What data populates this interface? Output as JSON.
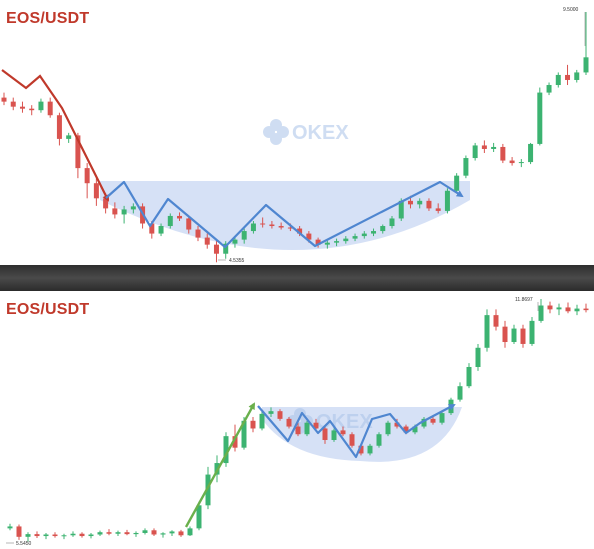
{
  "colors": {
    "up": "#3cb371",
    "down": "#d9534f",
    "pattern_fill": "#cfdcf5",
    "pattern_line": "#4f86d0",
    "downtrend_line": "#c0392b",
    "uptrend_line": "#6ab04c",
    "watermark": "#a9c3e8"
  },
  "watermark": {
    "text": "OKEX"
  },
  "chart_data": [
    {
      "type": "candlestick",
      "title": "EOS/USDT",
      "max_label": "9.5000",
      "min_label": "4.5355",
      "watermark": "OKEX",
      "annotation": "cup-shaped base after a downtrend",
      "candles": [
        {
          "o": 7.8,
          "h": 7.9,
          "l": 7.65,
          "c": 7.72
        },
        {
          "o": 7.72,
          "h": 7.8,
          "l": 7.55,
          "c": 7.62
        },
        {
          "o": 7.62,
          "h": 7.72,
          "l": 7.5,
          "c": 7.58
        },
        {
          "o": 7.58,
          "h": 7.65,
          "l": 7.45,
          "c": 7.55
        },
        {
          "o": 7.55,
          "h": 7.78,
          "l": 7.5,
          "c": 7.72
        },
        {
          "o": 7.72,
          "h": 7.8,
          "l": 7.4,
          "c": 7.45
        },
        {
          "o": 7.45,
          "h": 7.5,
          "l": 6.85,
          "c": 6.98
        },
        {
          "o": 6.98,
          "h": 7.1,
          "l": 6.9,
          "c": 7.05
        },
        {
          "o": 7.05,
          "h": 7.1,
          "l": 6.2,
          "c": 6.4
        },
        {
          "o": 6.4,
          "h": 6.5,
          "l": 5.8,
          "c": 6.1
        },
        {
          "o": 6.1,
          "h": 6.2,
          "l": 5.65,
          "c": 5.8
        },
        {
          "o": 5.8,
          "h": 5.9,
          "l": 5.5,
          "c": 5.6
        },
        {
          "o": 5.6,
          "h": 5.72,
          "l": 5.4,
          "c": 5.48
        },
        {
          "o": 5.48,
          "h": 5.65,
          "l": 5.3,
          "c": 5.58
        },
        {
          "o": 5.58,
          "h": 5.7,
          "l": 5.5,
          "c": 5.64
        },
        {
          "o": 5.64,
          "h": 5.7,
          "l": 5.2,
          "c": 5.3
        },
        {
          "o": 5.3,
          "h": 5.35,
          "l": 5.0,
          "c": 5.1
        },
        {
          "o": 5.1,
          "h": 5.3,
          "l": 5.05,
          "c": 5.25
        },
        {
          "o": 5.25,
          "h": 5.5,
          "l": 5.2,
          "c": 5.45
        },
        {
          "o": 5.45,
          "h": 5.52,
          "l": 5.35,
          "c": 5.4
        },
        {
          "o": 5.4,
          "h": 5.45,
          "l": 5.1,
          "c": 5.18
        },
        {
          "o": 5.18,
          "h": 5.25,
          "l": 4.95,
          "c": 5.02
        },
        {
          "o": 5.02,
          "h": 5.1,
          "l": 4.8,
          "c": 4.88
        },
        {
          "o": 4.88,
          "h": 4.95,
          "l": 4.53,
          "c": 4.7
        },
        {
          "o": 4.7,
          "h": 4.95,
          "l": 4.6,
          "c": 4.9
        },
        {
          "o": 4.9,
          "h": 5.05,
          "l": 4.82,
          "c": 4.98
        },
        {
          "o": 4.98,
          "h": 5.2,
          "l": 4.9,
          "c": 5.15
        },
        {
          "o": 5.15,
          "h": 5.35,
          "l": 5.1,
          "c": 5.3
        },
        {
          "o": 5.3,
          "h": 5.42,
          "l": 5.22,
          "c": 5.28
        },
        {
          "o": 5.28,
          "h": 5.35,
          "l": 5.2,
          "c": 5.25
        },
        {
          "o": 5.25,
          "h": 5.32,
          "l": 5.18,
          "c": 5.22
        },
        {
          "o": 5.22,
          "h": 5.3,
          "l": 5.15,
          "c": 5.2
        },
        {
          "o": 5.2,
          "h": 5.25,
          "l": 5.05,
          "c": 5.1
        },
        {
          "o": 5.1,
          "h": 5.15,
          "l": 4.92,
          "c": 4.98
        },
        {
          "o": 4.98,
          "h": 5.02,
          "l": 4.82,
          "c": 4.88
        },
        {
          "o": 4.88,
          "h": 4.98,
          "l": 4.8,
          "c": 4.92
        },
        {
          "o": 4.92,
          "h": 5.0,
          "l": 4.85,
          "c": 4.95
        },
        {
          "o": 4.95,
          "h": 5.05,
          "l": 4.9,
          "c": 5.0
        },
        {
          "o": 5.0,
          "h": 5.1,
          "l": 4.95,
          "c": 5.05
        },
        {
          "o": 5.05,
          "h": 5.15,
          "l": 5.0,
          "c": 5.1
        },
        {
          "o": 5.1,
          "h": 5.2,
          "l": 5.05,
          "c": 5.15
        },
        {
          "o": 5.15,
          "h": 5.28,
          "l": 5.1,
          "c": 5.25
        },
        {
          "o": 5.25,
          "h": 5.45,
          "l": 5.2,
          "c": 5.4
        },
        {
          "o": 5.4,
          "h": 5.8,
          "l": 5.35,
          "c": 5.75
        },
        {
          "o": 5.75,
          "h": 5.85,
          "l": 5.6,
          "c": 5.68
        },
        {
          "o": 5.68,
          "h": 5.8,
          "l": 5.6,
          "c": 5.75
        },
        {
          "o": 5.75,
          "h": 5.8,
          "l": 5.55,
          "c": 5.6
        },
        {
          "o": 5.6,
          "h": 5.7,
          "l": 5.5,
          "c": 5.55
        },
        {
          "o": 5.55,
          "h": 6.0,
          "l": 5.5,
          "c": 5.95
        },
        {
          "o": 5.95,
          "h": 6.3,
          "l": 5.9,
          "c": 6.25
        },
        {
          "o": 6.25,
          "h": 6.65,
          "l": 6.2,
          "c": 6.6
        },
        {
          "o": 6.6,
          "h": 6.9,
          "l": 6.55,
          "c": 6.85
        },
        {
          "o": 6.85,
          "h": 6.95,
          "l": 6.7,
          "c": 6.78
        },
        {
          "o": 6.78,
          "h": 6.9,
          "l": 6.72,
          "c": 6.82
        },
        {
          "o": 6.82,
          "h": 6.88,
          "l": 6.5,
          "c": 6.55
        },
        {
          "o": 6.55,
          "h": 6.62,
          "l": 6.45,
          "c": 6.5
        },
        {
          "o": 6.5,
          "h": 6.58,
          "l": 6.42,
          "c": 6.52
        },
        {
          "o": 6.52,
          "h": 6.9,
          "l": 6.48,
          "c": 6.88
        },
        {
          "o": 6.88,
          "h": 8.0,
          "l": 6.85,
          "c": 7.9
        },
        {
          "o": 7.9,
          "h": 8.1,
          "l": 7.85,
          "c": 8.05
        },
        {
          "o": 8.05,
          "h": 8.3,
          "l": 8.0,
          "c": 8.25
        },
        {
          "o": 8.25,
          "h": 8.45,
          "l": 8.05,
          "c": 8.15
        },
        {
          "o": 8.15,
          "h": 8.35,
          "l": 8.1,
          "c": 8.3
        },
        {
          "o": 8.3,
          "h": 9.5,
          "l": 8.25,
          "c": 8.6
        }
      ]
    },
    {
      "type": "candlestick",
      "title": "EOS/USDT",
      "max_label": "11.8697",
      "min_label": "5.5450",
      "watermark": "OKEX",
      "annotation": "cup-shaped base after an uptrend",
      "candles": [
        {
          "o": 5.9,
          "h": 6.02,
          "l": 5.85,
          "c": 5.95
        },
        {
          "o": 5.95,
          "h": 6.0,
          "l": 5.6,
          "c": 5.68
        },
        {
          "o": 5.68,
          "h": 5.8,
          "l": 5.55,
          "c": 5.75
        },
        {
          "o": 5.75,
          "h": 5.82,
          "l": 5.65,
          "c": 5.7
        },
        {
          "o": 5.7,
          "h": 5.78,
          "l": 5.62,
          "c": 5.74
        },
        {
          "o": 5.74,
          "h": 5.8,
          "l": 5.66,
          "c": 5.7
        },
        {
          "o": 5.7,
          "h": 5.76,
          "l": 5.62,
          "c": 5.72
        },
        {
          "o": 5.72,
          "h": 5.82,
          "l": 5.68,
          "c": 5.76
        },
        {
          "o": 5.76,
          "h": 5.8,
          "l": 5.66,
          "c": 5.7
        },
        {
          "o": 5.7,
          "h": 5.78,
          "l": 5.64,
          "c": 5.74
        },
        {
          "o": 5.74,
          "h": 5.84,
          "l": 5.7,
          "c": 5.8
        },
        {
          "o": 5.8,
          "h": 5.88,
          "l": 5.72,
          "c": 5.76
        },
        {
          "o": 5.76,
          "h": 5.84,
          "l": 5.7,
          "c": 5.8
        },
        {
          "o": 5.8,
          "h": 5.86,
          "l": 5.72,
          "c": 5.75
        },
        {
          "o": 5.75,
          "h": 5.82,
          "l": 5.68,
          "c": 5.78
        },
        {
          "o": 5.78,
          "h": 5.9,
          "l": 5.74,
          "c": 5.85
        },
        {
          "o": 5.85,
          "h": 5.9,
          "l": 5.7,
          "c": 5.74
        },
        {
          "o": 5.74,
          "h": 5.8,
          "l": 5.66,
          "c": 5.77
        },
        {
          "o": 5.77,
          "h": 5.85,
          "l": 5.7,
          "c": 5.82
        },
        {
          "o": 5.82,
          "h": 5.86,
          "l": 5.68,
          "c": 5.72
        },
        {
          "o": 5.72,
          "h": 5.95,
          "l": 5.7,
          "c": 5.9
        },
        {
          "o": 5.9,
          "h": 6.6,
          "l": 5.85,
          "c": 6.5
        },
        {
          "o": 6.5,
          "h": 7.5,
          "l": 6.4,
          "c": 7.3
        },
        {
          "o": 7.3,
          "h": 7.8,
          "l": 7.1,
          "c": 7.6
        },
        {
          "o": 7.6,
          "h": 8.4,
          "l": 7.5,
          "c": 8.3
        },
        {
          "o": 8.3,
          "h": 8.6,
          "l": 7.9,
          "c": 8.0
        },
        {
          "o": 8.0,
          "h": 8.8,
          "l": 7.95,
          "c": 8.7
        },
        {
          "o": 8.7,
          "h": 8.8,
          "l": 8.4,
          "c": 8.5
        },
        {
          "o": 8.5,
          "h": 8.95,
          "l": 8.45,
          "c": 8.88
        },
        {
          "o": 8.88,
          "h": 9.05,
          "l": 8.8,
          "c": 8.95
        },
        {
          "o": 8.95,
          "h": 9.0,
          "l": 8.7,
          "c": 8.75
        },
        {
          "o": 8.75,
          "h": 8.8,
          "l": 8.5,
          "c": 8.55
        },
        {
          "o": 8.55,
          "h": 8.65,
          "l": 8.3,
          "c": 8.35
        },
        {
          "o": 8.35,
          "h": 8.7,
          "l": 8.3,
          "c": 8.65
        },
        {
          "o": 8.65,
          "h": 8.75,
          "l": 8.45,
          "c": 8.5
        },
        {
          "o": 8.5,
          "h": 8.55,
          "l": 8.1,
          "c": 8.2
        },
        {
          "o": 8.2,
          "h": 8.5,
          "l": 8.15,
          "c": 8.45
        },
        {
          "o": 8.45,
          "h": 8.55,
          "l": 8.3,
          "c": 8.35
        },
        {
          "o": 8.35,
          "h": 8.4,
          "l": 8.0,
          "c": 8.05
        },
        {
          "o": 8.05,
          "h": 8.1,
          "l": 7.8,
          "c": 7.85
        },
        {
          "o": 7.85,
          "h": 8.1,
          "l": 7.8,
          "c": 8.05
        },
        {
          "o": 8.05,
          "h": 8.4,
          "l": 8.0,
          "c": 8.35
        },
        {
          "o": 8.35,
          "h": 8.7,
          "l": 8.3,
          "c": 8.65
        },
        {
          "o": 8.65,
          "h": 8.75,
          "l": 8.5,
          "c": 8.55
        },
        {
          "o": 8.55,
          "h": 8.6,
          "l": 8.35,
          "c": 8.4
        },
        {
          "o": 8.4,
          "h": 8.6,
          "l": 8.35,
          "c": 8.55
        },
        {
          "o": 8.55,
          "h": 8.8,
          "l": 8.5,
          "c": 8.75
        },
        {
          "o": 8.75,
          "h": 8.85,
          "l": 8.6,
          "c": 8.65
        },
        {
          "o": 8.65,
          "h": 8.95,
          "l": 8.6,
          "c": 8.9
        },
        {
          "o": 8.9,
          "h": 9.3,
          "l": 8.85,
          "c": 9.25
        },
        {
          "o": 9.25,
          "h": 9.7,
          "l": 9.2,
          "c": 9.6
        },
        {
          "o": 9.6,
          "h": 10.2,
          "l": 9.55,
          "c": 10.1
        },
        {
          "o": 10.1,
          "h": 10.7,
          "l": 10.0,
          "c": 10.6
        },
        {
          "o": 10.6,
          "h": 11.6,
          "l": 10.5,
          "c": 11.45
        },
        {
          "o": 11.45,
          "h": 11.6,
          "l": 11.05,
          "c": 11.15
        },
        {
          "o": 11.15,
          "h": 11.3,
          "l": 10.6,
          "c": 10.75
        },
        {
          "o": 10.75,
          "h": 11.2,
          "l": 10.7,
          "c": 11.1
        },
        {
          "o": 11.1,
          "h": 11.2,
          "l": 10.6,
          "c": 10.7
        },
        {
          "o": 10.7,
          "h": 11.4,
          "l": 10.65,
          "c": 11.3
        },
        {
          "o": 11.3,
          "h": 11.87,
          "l": 11.25,
          "c": 11.7
        },
        {
          "o": 11.7,
          "h": 11.8,
          "l": 11.5,
          "c": 11.6
        },
        {
          "o": 11.6,
          "h": 11.75,
          "l": 11.45,
          "c": 11.65
        },
        {
          "o": 11.65,
          "h": 11.78,
          "l": 11.5,
          "c": 11.55
        },
        {
          "o": 11.55,
          "h": 11.72,
          "l": 11.45,
          "c": 11.62
        },
        {
          "o": 11.62,
          "h": 11.75,
          "l": 11.52,
          "c": 11.58
        }
      ]
    }
  ]
}
